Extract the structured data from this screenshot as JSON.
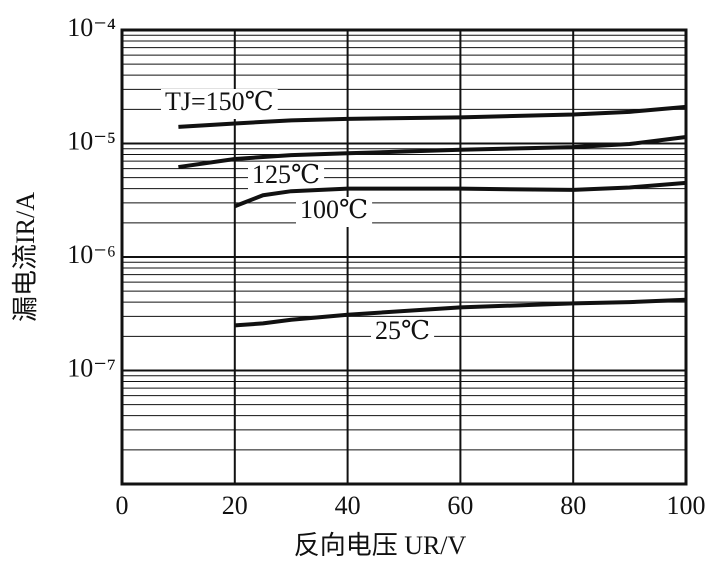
{
  "chart_data": {
    "type": "line",
    "xlabel": "反向电压 UR/V",
    "ylabel": "漏电流IR/A",
    "x": [
      10,
      20,
      25,
      30,
      40,
      60,
      80,
      90,
      100
    ],
    "series": [
      {
        "name": "TJ=150℃",
        "color": "#111111",
        "values": [
          1.4e-05,
          1.5e-05,
          1.55e-05,
          1.6e-05,
          1.65e-05,
          1.7e-05,
          1.8e-05,
          1.9e-05,
          2.1e-05
        ]
      },
      {
        "name": "125℃",
        "color": "#111111",
        "values": [
          6.2e-06,
          7.3e-06,
          7.6e-06,
          7.9e-06,
          8.2e-06,
          8.8e-06,
          9.3e-06,
          9.9e-06,
          1.14e-05
        ]
      },
      {
        "name": "100℃",
        "color": "#111111",
        "values": [
          null,
          2.8e-06,
          3.5e-06,
          3.8e-06,
          4e-06,
          4e-06,
          3.9e-06,
          4.1e-06,
          4.5e-06
        ]
      },
      {
        "name": "25℃",
        "color": "#111111",
        "values": [
          null,
          2.5e-07,
          2.6e-07,
          2.8e-07,
          3.1e-07,
          3.6e-07,
          3.9e-07,
          4e-07,
          4.2e-07
        ]
      }
    ],
    "xlim": [
      0,
      100
    ],
    "xticks": [
      0,
      20,
      40,
      60,
      80,
      100
    ],
    "ylim": [
      1e-08,
      0.0001
    ],
    "yticks": [
      {
        "value": 0.0001,
        "label": "10⁻⁴"
      },
      {
        "value": 1e-05,
        "label": "10⁻⁵"
      },
      {
        "value": 1e-06,
        "label": "10⁻⁶"
      },
      {
        "value": 1e-07,
        "label": "10⁻⁷"
      }
    ],
    "log_scale": true,
    "grid": true
  }
}
